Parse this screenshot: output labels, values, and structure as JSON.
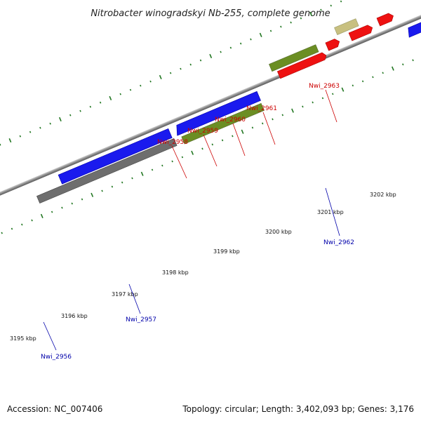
{
  "title": "Nitrobacter winogradskyi Nb-255, complete genome",
  "footer": {
    "accession": "Accession: NC_007406",
    "summary": "Topology: circular; Length: 3,402,093 bp; Genes: 3,176"
  },
  "colors": {
    "forward_label": "#cc0000",
    "reverse_label": "#0000aa",
    "blue_gene": "#1a1aee",
    "green_gene": "#6b8e23",
    "khaki_gene": "#c8c080",
    "red_gene": "#ee1111",
    "gray_gene": "#6e6e6e",
    "backbone": "#8a8a8a",
    "tick": "#227722"
  },
  "kbp_ticks": [
    "3195 kbp",
    "3196 kbp",
    "3197 kbp",
    "3198 kbp",
    "3199 kbp",
    "3200 kbp",
    "3201 kbp",
    "3202 kbp"
  ],
  "genes_forward": [
    "Nwi_2958",
    "Nwi_2959",
    "Nwi_2960",
    "Nwi_2961",
    "Nwi_2963"
  ],
  "genes_reverse": [
    "Nwi_2956",
    "Nwi_2957",
    "Nwi_2962"
  ]
}
